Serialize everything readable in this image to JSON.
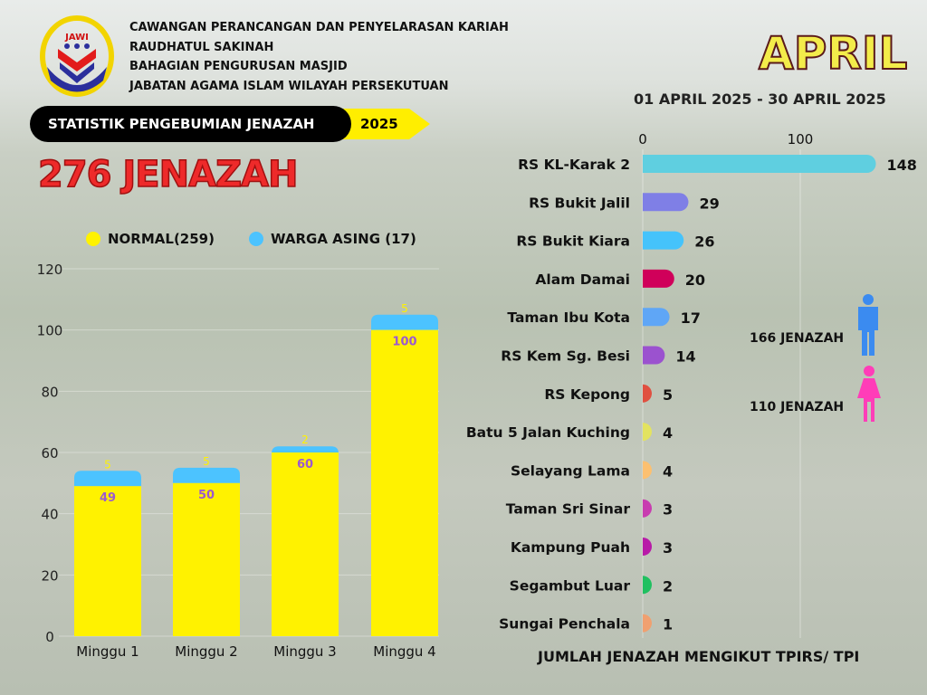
{
  "header": {
    "lines": [
      "CAWANGAN PERANCANGAN DAN PENYELARASAN KARIAH",
      "RAUDHATUL SAKINAH",
      "BAHAGIAN PENGURUSAN MASJID",
      "JABATAN AGAMA ISLAM WILAYAH PERSEKUTUAN"
    ],
    "logo_text": "JAWI"
  },
  "banner": {
    "title": "STATISTIK PENGEBUMIAN JENAZAH",
    "year": "2025"
  },
  "total": "276 JENAZAH",
  "month": "APRIL",
  "date_range": "01 APRIL 2025 - 30 APRIL 2025",
  "gender": {
    "male": "166 JENAZAH",
    "female": "110 JENAZAH",
    "male_color": "#3b8bf0",
    "female_color": "#ff3db8"
  },
  "footer": "JUMLAH JENAZAH MENGIKUT TPIRS/ TPI",
  "chart_data": [
    {
      "type": "bar",
      "stacked": true,
      "categories": [
        "Minggu 1",
        "Minggu 2",
        "Minggu 3",
        "Minggu 4"
      ],
      "series": [
        {
          "name": "NORMAL(259)",
          "color": "#fff200",
          "values": [
            49,
            50,
            60,
            100
          ]
        },
        {
          "name": "WARGA ASING (17)",
          "color": "#4cc3ff",
          "values": [
            5,
            5,
            2,
            5
          ]
        }
      ],
      "yticks": [
        0,
        20,
        40,
        60,
        80,
        100,
        120
      ],
      "ylim": [
        0,
        120
      ],
      "legend": "top"
    },
    {
      "type": "bar",
      "orientation": "horizontal",
      "xticks": [
        0,
        100
      ],
      "categories": [
        "RS KL-Karak 2",
        "RS Bukit Jalil",
        "RS Bukit Kiara",
        "Alam Damai",
        "Taman Ibu Kota",
        "RS Kem Sg. Besi",
        "RS Kepong",
        "Batu 5 Jalan Kuching",
        "Selayang Lama",
        "Taman Sri Sinar",
        "Kampung Puah",
        "Segambut Luar",
        "Sungai Penchala"
      ],
      "values": [
        148,
        29,
        26,
        20,
        17,
        14,
        5,
        4,
        4,
        3,
        3,
        2,
        1
      ],
      "colors": [
        "#5fcfe0",
        "#7f7fe6",
        "#45c3fb",
        "#d0005a",
        "#5fa6f6",
        "#9b52cf",
        "#e05040",
        "#e3e360",
        "#fcc070",
        "#c83cb0",
        "#b81aa8",
        "#20c060",
        "#f0a070"
      ]
    }
  ]
}
